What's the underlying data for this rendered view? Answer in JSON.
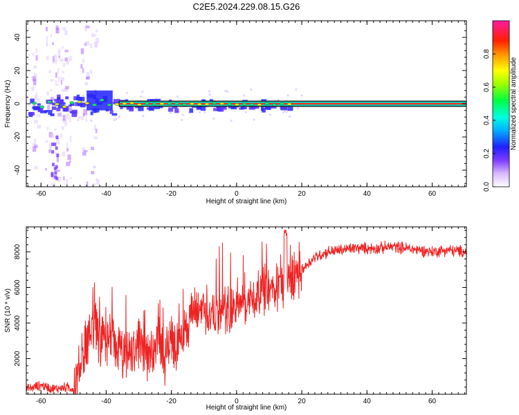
{
  "title": "C2E5.2024.229.08.15.G26",
  "colors": {
    "snr_line": "#ee2222",
    "band_outline": "#111111",
    "band_fill": "#19c7b0",
    "ridge": "#ff2a1a",
    "nodes": "#ffe300"
  },
  "chart_data": [
    {
      "type": "heatmap",
      "name": "spectrogram",
      "xlabel": "Height of straight line (km)",
      "ylabel": "Frequency (Hz)",
      "xlim": [
        -64.5,
        70.5
      ],
      "ylim": [
        -50,
        50
      ],
      "x_ticks": [
        -60,
        -40,
        -20,
        0,
        20,
        40,
        60
      ],
      "x_tick_labels": [
        "-60",
        "-40",
        "-20",
        "0",
        "20",
        "40",
        "60"
      ],
      "y_ticks": [
        -40,
        -20,
        0,
        20,
        40
      ],
      "y_tick_labels": [
        "-40",
        "-20",
        "0",
        "20",
        "40"
      ],
      "ridge_frequency_hz": 0,
      "steady_ridge_from_km": 18,
      "colorbar": {
        "label": "Normalized spectral amplitude",
        "range": [
          0,
          1
        ],
        "ticks": [
          0.0,
          0.2,
          0.4,
          0.6,
          0.8
        ],
        "tick_labels": [
          "0.0",
          "0.2",
          "0.4",
          "0.6",
          "0.8"
        ]
      },
      "grid": false
    },
    {
      "type": "line",
      "name": "snr",
      "xlabel": "Height of straight line (km)",
      "ylabel": "SNR (10 * v/v)",
      "xlim": [
        -64.5,
        70.5
      ],
      "ylim": [
        0,
        9400
      ],
      "x_ticks": [
        -60,
        -40,
        -20,
        0,
        20,
        40,
        60
      ],
      "x_tick_labels": [
        "-60",
        "-40",
        "-20",
        "0",
        "20",
        "40",
        "60"
      ],
      "y_ticks": [
        2000,
        4000,
        6000,
        8000
      ],
      "y_tick_labels": [
        "2000",
        "4000",
        "6000",
        "8000"
      ],
      "series": [
        {
          "x": [
            -64,
            -60,
            -56,
            -52,
            -50,
            -48,
            -46,
            -44,
            -42,
            -40,
            -38,
            -36,
            -34,
            -32,
            -30,
            -28,
            -26,
            -24,
            -22,
            -20,
            -18,
            -16,
            -14,
            -12,
            -10,
            -8,
            -6,
            -4,
            -2,
            0,
            2,
            4,
            6,
            8,
            10,
            12,
            14,
            16,
            18,
            20,
            24,
            28,
            32,
            36,
            40,
            44,
            48,
            52,
            56,
            60,
            64,
            70
          ],
          "y": [
            300,
            500,
            300,
            400,
            300,
            1500,
            3000,
            4000,
            3200,
            2800,
            3000,
            2500,
            1800,
            2400,
            2800,
            2000,
            2400,
            3200,
            2000,
            3300,
            2600,
            3800,
            4400,
            4600,
            5000,
            4300,
            4500,
            4800,
            4700,
            5000,
            5300,
            5300,
            5500,
            6000,
            5700,
            6200,
            6000,
            6600,
            6800,
            7000,
            7700,
            8000,
            8100,
            8200,
            8200,
            8200,
            8300,
            8200,
            8100,
            8000,
            8100,
            8000
          ]
        }
      ],
      "grid": false
    }
  ]
}
